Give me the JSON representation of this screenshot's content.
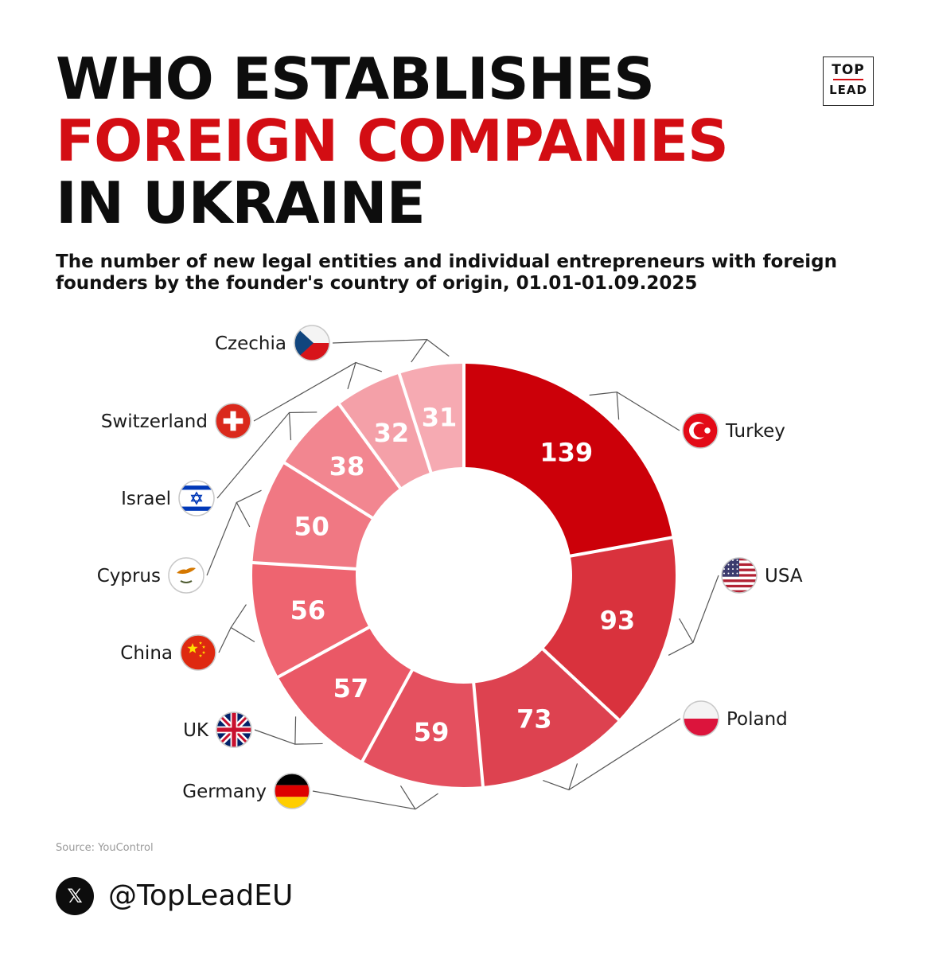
{
  "header": {
    "title_lines": [
      "WHO ESTABLISHES",
      "FOREIGN COMPANIES",
      "IN UKRAINE"
    ],
    "subtitle": "The number of new legal entities and individual entrepreneurs with foreign founders by the founder's country of origin, 01.01-01.09.2025"
  },
  "logo": {
    "top": "TOP",
    "bottom": "LEAD"
  },
  "source": "Source: YouControl",
  "social": {
    "icon": "x-icon",
    "handle": "@TopLeadEU"
  },
  "colors": {
    "title_red": "#d30d13",
    "title_black": "#0d0d0d"
  },
  "chart_data": {
    "type": "pie",
    "variant": "donut",
    "title": "",
    "categories": [
      "Turkey",
      "USA",
      "Poland",
      "Germany",
      "UK",
      "China",
      "Cyprus",
      "Israel",
      "Switzerland",
      "Czechia"
    ],
    "values": [
      139,
      93,
      73,
      59,
      57,
      56,
      50,
      38,
      32,
      31
    ],
    "colors": [
      "#cc0009",
      "#d9323d",
      "#dd4250",
      "#e4505f",
      "#ea5866",
      "#ee6470",
      "#f07883",
      "#f28690",
      "#f4a0a8",
      "#f6aab2"
    ],
    "flags": [
      "turkey-flag",
      "usa-flag",
      "poland-flag",
      "germany-flag",
      "uk-flag",
      "china-flag",
      "cyprus-flag",
      "israel-flag",
      "switzerland-flag",
      "czechia-flag"
    ]
  }
}
